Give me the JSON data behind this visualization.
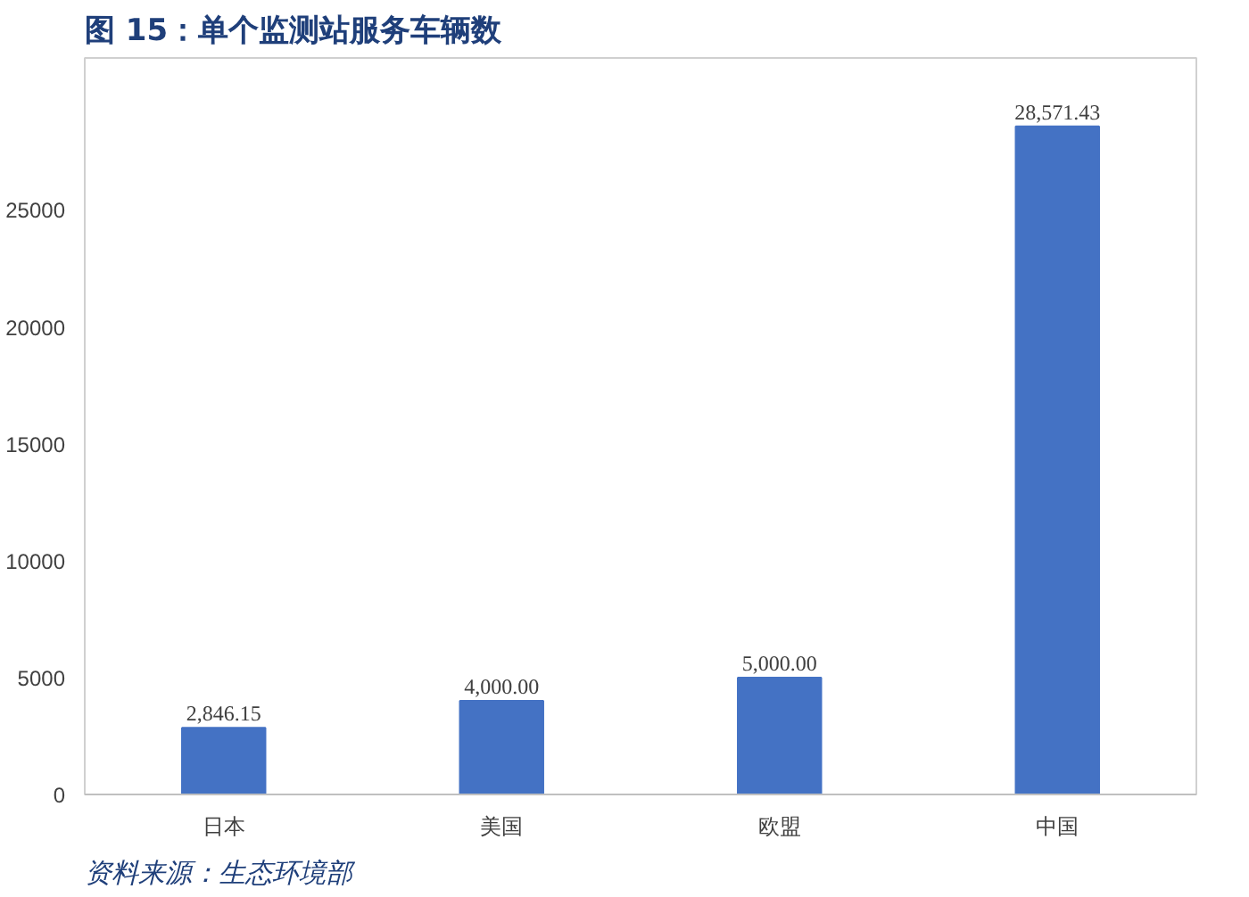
{
  "chart_data": {
    "type": "bar",
    "title": "图 15：单个监测站服务车辆数",
    "categories": [
      "日本",
      "美国",
      "欧盟",
      "中国"
    ],
    "values": [
      2846.15,
      4000,
      5000,
      28571.43
    ],
    "value_labels": [
      "2,846.15",
      "4,000.00",
      "5,000.00",
      "28,571.43"
    ],
    "color": "#4472c4",
    "ylim": [
      0,
      31500
    ],
    "yticks": [
      0,
      5000,
      10000,
      15000,
      20000,
      25000
    ],
    "annotations": [
      "资料来源：生态环境部"
    ]
  }
}
